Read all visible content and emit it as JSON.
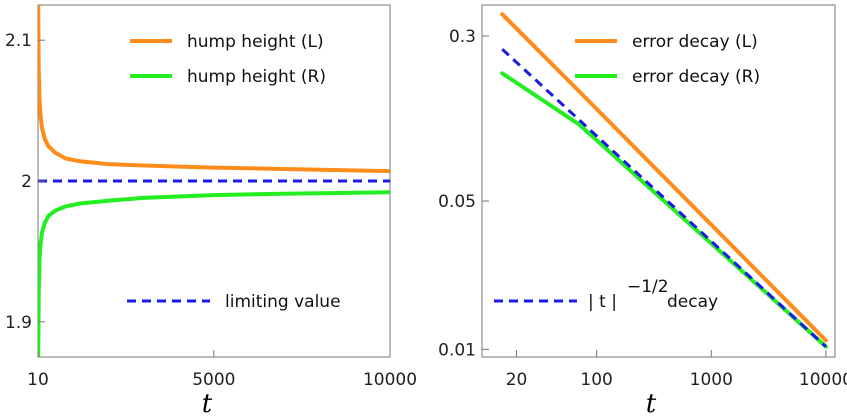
{
  "chart_data": [
    {
      "type": "line",
      "xscale": "linear",
      "yscale": "linear",
      "xlim": [
        10,
        10000
      ],
      "ylim": [
        1.875,
        2.125
      ],
      "xticks": [
        10,
        5000,
        10000
      ],
      "xtick_labels": [
        "10",
        "5000",
        "10000"
      ],
      "yticks": [
        1.9,
        2.0,
        2.1
      ],
      "ytick_labels": [
        "1.9",
        "2",
        "2.1"
      ],
      "xlabel": "t",
      "ylabel": "",
      "series": [
        {
          "name": "hump height (L)",
          "color": "#ff8c1a",
          "dash": "solid",
          "x": [
            15,
            20,
            30,
            50,
            80,
            120,
            200,
            300,
            500,
            800,
            1200,
            2000,
            3000,
            5000,
            7000,
            10000
          ],
          "y": [
            2.125,
            2.11,
            2.08,
            2.06,
            2.047,
            2.038,
            2.03,
            2.025,
            2.02,
            2.016,
            2.014,
            2.012,
            2.011,
            2.0095,
            2.0085,
            2.007
          ]
        },
        {
          "name": "hump height (R)",
          "color": "#22ee22",
          "dash": "solid",
          "x": [
            15,
            20,
            30,
            50,
            80,
            120,
            200,
            300,
            500,
            800,
            1200,
            2000,
            3000,
            5000,
            7000,
            10000
          ],
          "y": [
            1.875,
            1.89,
            1.92,
            1.943,
            1.955,
            1.963,
            1.97,
            1.975,
            1.979,
            1.982,
            1.984,
            1.986,
            1.988,
            1.99,
            1.991,
            1.992
          ]
        },
        {
          "name": "limiting value",
          "color": "#1a1ae6",
          "dash": "dashed",
          "x": [
            10,
            10000
          ],
          "y": [
            2.0,
            2.0
          ]
        }
      ],
      "legend": [
        "hump height (L)",
        "hump height (R)",
        "limiting value"
      ],
      "legend_position": "top-right, limiting value bottom-right"
    },
    {
      "type": "line",
      "xscale": "log",
      "yscale": "log",
      "xlim": [
        10,
        12000
      ],
      "ylim": [
        0.0092,
        0.42
      ],
      "xticks": [
        20,
        100,
        1000,
        10000
      ],
      "xtick_labels": [
        "20",
        "100",
        "1000",
        "10000"
      ],
      "yticks": [
        0.01,
        0.05,
        0.3
      ],
      "ytick_labels": [
        "0.01",
        "0.05",
        "0.3"
      ],
      "xlabel": "t",
      "ylabel": "",
      "series": [
        {
          "name": "error decay (L)",
          "color": "#ff8c1a",
          "dash": "solid",
          "x": [
            15,
            70,
            10000
          ],
          "y": [
            0.38,
            0.165,
            0.011
          ]
        },
        {
          "name": "error decay (R)",
          "color": "#22ee22",
          "dash": "solid",
          "x": [
            15,
            70,
            10000
          ],
          "y": [
            0.2,
            0.115,
            0.0103
          ]
        },
        {
          "name": "|t|^-1/2 decay",
          "color": "#1a1ae6",
          "dash": "dashed",
          "x": [
            15,
            10000
          ],
          "y": [
            0.26,
            0.0103
          ]
        }
      ],
      "legend": [
        "error decay (L)",
        "error decay (R)",
        "| t |",
        "−1/2",
        "decay"
      ],
      "legend_position": "top-right, |t|^-1/2 decay bottom-left"
    }
  ]
}
